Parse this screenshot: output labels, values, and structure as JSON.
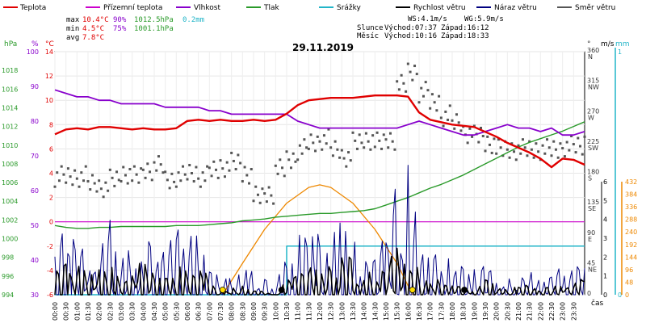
{
  "legend": [
    {
      "name": "Teplota",
      "color": "#e00000"
    },
    {
      "name": "Přízemní teplota",
      "color": "#cc00cc"
    },
    {
      "name": "Vlhkost",
      "color": "#8800cc"
    },
    {
      "name": "Tlak",
      "color": "#2a9a2a"
    },
    {
      "name": "Srážky",
      "color": "#22b5c8"
    },
    {
      "name": "Rychlost větru",
      "color": "#000000"
    },
    {
      "name": "Náraz větru",
      "color": "#000080"
    },
    {
      "name": "Směr větru",
      "color": "#555555"
    }
  ],
  "stats": {
    "max_label": "max",
    "max_temp": "10.4°C",
    "max_hum": "90%",
    "max_press": "1012.5hPa",
    "max_rain": "0.2mm",
    "min_label": "min",
    "min_temp": "4.5°C",
    "min_hum": "75%",
    "min_press": "1001.1hPa",
    "avg_label": "avg",
    "avg_temp": "7.8°C"
  },
  "info": {
    "ws": "WS:4.1m/s",
    "wg": "WG:5.9m/s",
    "sun_label": "Slunce",
    "sunrise": "Východ:07:37",
    "sunset": "Západ:16:12",
    "moon_label": "Měsíc",
    "moonrise": "Východ:10:16",
    "moonset": "Západ:18:33"
  },
  "date": "29.11.2019",
  "axis_units": {
    "hpa": "hPa",
    "pct": "%",
    "degc": "°C",
    "deg": "°",
    "ms": "m/s",
    "mm": "mm",
    "cas": "čas"
  },
  "colors": {
    "temp": "#e00000",
    "hum": "#8800cc",
    "press": "#2a9a2a",
    "rain": "#22b5c8",
    "wind": "#000000",
    "gust": "#000080",
    "dir": "#555555",
    "sun": "#ee8800",
    "ground": "#cc00cc"
  },
  "chart_data": {
    "type": "line",
    "x_axis": {
      "label": "čas",
      "ticks": [
        "00:00",
        "00:30",
        "01:00",
        "01:30",
        "02:00",
        "02:30",
        "03:00",
        "03:30",
        "04:00",
        "04:30",
        "05:00",
        "05:30",
        "06:00",
        "06:30",
        "07:00",
        "07:30",
        "08:00",
        "08:30",
        "09:00",
        "09:30",
        "10:00",
        "10:30",
        "11:00",
        "11:30",
        "12:00",
        "12:30",
        "13:00",
        "13:30",
        "14:00",
        "14:30",
        "15:00",
        "15:30",
        "16:00",
        "16:30",
        "17:00",
        "17:30",
        "18:00",
        "18:30",
        "19:00",
        "19:30",
        "20:00",
        "20:30",
        "21:00",
        "21:30",
        "22:00",
        "22:30",
        "23:00",
        "23:30"
      ]
    },
    "y_axes": {
      "pressure_hpa": {
        "min": 994,
        "max": 1020,
        "ticks": [
          994,
          996,
          998,
          1000,
          1002,
          1004,
          1006,
          1008,
          1010,
          1012,
          1014,
          1016,
          1018
        ]
      },
      "humidity_pct": {
        "min": 30,
        "max": 100,
        "ticks": [
          30,
          40,
          50,
          60,
          70,
          80,
          90,
          100
        ]
      },
      "temperature_c": {
        "min": -6,
        "max": 14,
        "ticks": [
          -6,
          -4,
          -2,
          0,
          2,
          4,
          6,
          8,
          10,
          12,
          14
        ]
      },
      "direction_deg": {
        "min": 0,
        "max": 360,
        "ticks": [
          0,
          45,
          90,
          135,
          180,
          225,
          270,
          315,
          360
        ],
        "compass": [
          "",
          "NE",
          "E",
          "SE",
          "S",
          "SW",
          "W",
          "NW",
          "N"
        ]
      },
      "wind_ms": {
        "min": 0,
        "max": 6,
        "ticks": [
          0,
          1,
          2,
          3,
          4,
          5,
          6
        ]
      },
      "rain_mm": {
        "min": 0,
        "max": 1,
        "ticks": [
          0,
          1
        ]
      },
      "solar": {
        "min": 0,
        "max": 432,
        "ticks": [
          0,
          48,
          96,
          144,
          192,
          240,
          288,
          336,
          384,
          432
        ]
      }
    },
    "temperature": {
      "x": [
        0,
        0.5,
        1,
        1.5,
        2,
        2.5,
        3,
        3.5,
        4,
        4.5,
        5,
        5.5,
        6,
        6.5,
        7,
        7.5,
        8,
        8.5,
        9,
        9.5,
        10,
        10.5,
        11,
        11.5,
        12,
        12.5,
        13,
        13.5,
        14,
        14.5,
        15,
        15.5,
        16,
        16.5,
        17,
        17.5,
        18,
        18.5,
        19,
        19.5,
        20,
        20.5,
        21,
        21.5,
        22,
        22.5,
        23,
        23.5,
        24
      ],
      "y": [
        7.2,
        7.6,
        7.7,
        7.6,
        7.8,
        7.8,
        7.7,
        7.6,
        7.7,
        7.6,
        7.6,
        7.7,
        8.3,
        8.4,
        8.3,
        8.4,
        8.3,
        8.3,
        8.4,
        8.3,
        8.4,
        8.9,
        9.6,
        10.0,
        10.1,
        10.2,
        10.2,
        10.2,
        10.3,
        10.4,
        10.4,
        10.4,
        10.3,
        9.0,
        8.4,
        8.2,
        8.0,
        7.9,
        7.8,
        7.4,
        7.0,
        6.5,
        6.1,
        5.7,
        5.2,
        4.5,
        5.2,
        5.1,
        4.7
      ]
    },
    "humidity": {
      "x": [
        0,
        0.5,
        1,
        1.5,
        2,
        2.5,
        3,
        3.5,
        4,
        4.5,
        5,
        5.5,
        6,
        6.5,
        7,
        7.5,
        8,
        8.5,
        9,
        9.5,
        10,
        10.5,
        11,
        11.5,
        12,
        12.5,
        13,
        13.5,
        14,
        14.5,
        15,
        15.5,
        16,
        16.5,
        17,
        17.5,
        18,
        18.5,
        19,
        19.5,
        20,
        20.5,
        21,
        21.5,
        22,
        22.5,
        23,
        23.5,
        24
      ],
      "y": [
        89,
        88,
        87,
        87,
        86,
        86,
        85,
        85,
        85,
        85,
        84,
        84,
        84,
        84,
        83,
        83,
        82,
        82,
        82,
        82,
        82,
        82,
        80,
        79,
        78,
        78,
        78,
        78,
        78,
        78,
        78,
        78,
        79,
        80,
        79,
        78,
        77,
        76,
        76,
        77,
        78,
        79,
        78,
        78,
        77,
        78,
        76,
        76,
        77
      ]
    },
    "pressure": {
      "x": [
        0,
        0.5,
        1,
        1.5,
        2,
        2.5,
        3,
        3.5,
        4,
        4.5,
        5,
        5.5,
        6,
        6.5,
        7,
        7.5,
        8,
        8.5,
        9,
        9.5,
        10,
        10.5,
        11,
        11.5,
        12,
        12.5,
        13,
        13.5,
        14,
        14.5,
        15,
        15.5,
        16,
        16.5,
        17,
        17.5,
        18,
        18.5,
        19,
        19.5,
        20,
        20.5,
        21,
        21.5,
        22,
        22.5,
        23,
        23.5,
        24
      ],
      "y": [
        1001.4,
        1001.2,
        1001.1,
        1001.1,
        1001.2,
        1001.2,
        1001.3,
        1001.3,
        1001.3,
        1001.3,
        1001.3,
        1001.4,
        1001.4,
        1001.4,
        1001.5,
        1001.6,
        1001.7,
        1001.9,
        1002.0,
        1002.1,
        1002.3,
        1002.4,
        1002.5,
        1002.6,
        1002.7,
        1002.7,
        1002.8,
        1002.9,
        1003.0,
        1003.2,
        1003.6,
        1004.0,
        1004.4,
        1004.9,
        1005.4,
        1005.8,
        1006.3,
        1006.8,
        1007.4,
        1008.0,
        1008.6,
        1009.2,
        1009.8,
        1010.3,
        1010.7,
        1011.1,
        1011.5,
        1012.0,
        1012.5
      ]
    },
    "rain_mm": {
      "x": [
        0,
        10.5,
        10.5,
        24
      ],
      "y": [
        0,
        0,
        0.2,
        0.2
      ]
    },
    "wind_speed_ms": {
      "x": [
        0,
        0.5,
        1,
        1.5,
        2,
        2.5,
        3,
        3.5,
        4,
        4.5,
        5,
        5.5,
        6,
        6.5,
        7,
        7.5,
        8,
        8.5,
        9,
        9.5,
        10,
        10.5,
        11,
        11.5,
        12,
        12.5,
        13,
        13.5,
        14,
        14.5,
        15,
        15.5,
        16,
        16.5,
        17,
        17.5,
        18,
        18.5,
        19,
        19.5,
        20,
        20.5,
        21,
        21.5,
        22,
        22.5,
        23,
        23.5,
        24
      ],
      "y": [
        0.9,
        1.3,
        1.1,
        0.8,
        1.0,
        1.4,
        0.6,
        0.9,
        1.2,
        0.8,
        0.9,
        1.1,
        0.8,
        1.2,
        0.5,
        0.1,
        0.2,
        0.4,
        0.3,
        0.1,
        0.0,
        0.6,
        1.0,
        1.3,
        1.1,
        1.0,
        1.4,
        1.2,
        1.0,
        0.9,
        1.2,
        2.7,
        2.3,
        1.2,
        0.6,
        0.8,
        0.4,
        0.3,
        0.4,
        0.5,
        0.3,
        0.2,
        0.3,
        0.4,
        0.2,
        0.3,
        0.5,
        0.4,
        0.7
      ]
    },
    "wind_gust_ms": {
      "x": [
        0,
        0.5,
        1,
        1.5,
        2,
        2.5,
        3,
        3.5,
        4,
        4.5,
        5,
        5.5,
        6,
        6.5,
        7,
        7.5,
        8,
        8.5,
        9,
        9.5,
        10,
        10.5,
        11,
        11.5,
        12,
        12.5,
        13,
        13.5,
        14,
        14.5,
        15,
        15.5,
        16,
        16.5,
        17,
        17.5,
        18,
        18.5,
        19,
        19.5,
        20,
        20.5,
        21,
        21.5,
        22,
        22.5,
        23,
        23.5,
        24
      ],
      "y": [
        1.5,
        2.3,
        1.8,
        1.6,
        1.9,
        2.4,
        1.3,
        1.8,
        2.0,
        1.5,
        1.6,
        2.2,
        1.7,
        2.8,
        1.5,
        0.6,
        0.7,
        0.9,
        0.8,
        0.5,
        0.2,
        1.5,
        2.0,
        2.3,
        2.1,
        2.0,
        2.6,
        2.2,
        1.9,
        1.7,
        2.1,
        4.8,
        4.2,
        2.3,
        1.4,
        1.6,
        1.0,
        0.9,
        0.8,
        1.0,
        0.7,
        0.5,
        0.6,
        0.8,
        0.6,
        0.7,
        1.0,
        0.9,
        1.4
      ]
    },
    "wind_direction_deg": {
      "x": [
        0,
        0.5,
        1,
        1.5,
        2,
        2.5,
        3,
        3.5,
        4,
        4.5,
        5,
        5.5,
        6,
        6.5,
        7,
        7.5,
        8,
        8.5,
        9,
        9.5,
        10,
        10.5,
        11,
        11.5,
        12,
        12.5,
        13,
        13.5,
        14,
        14.5,
        15,
        15.5,
        16,
        16.5,
        17,
        17.5,
        18,
        18.5,
        19,
        19.5,
        20,
        20.5,
        21,
        21.5,
        22,
        22.5,
        23,
        23.5,
        24
      ],
      "y": [
        175,
        175,
        175,
        165,
        160,
        170,
        180,
        175,
        185,
        190,
        170,
        175,
        180,
        175,
        185,
        190,
        195,
        180,
        145,
        150,
        185,
        200,
        215,
        225,
        230,
        215,
        205,
        225,
        230,
        225,
        230,
        310,
        330,
        300,
        285,
        265,
        255,
        240,
        235,
        225,
        215,
        215,
        215,
        215,
        215,
        215,
        220,
        220,
        225
      ]
    },
    "solar": {
      "x": [
        7.6,
        8.5,
        9.5,
        10.5,
        11.5,
        12,
        12.5,
        13.5,
        14.5,
        15.5,
        16.2
      ],
      "y": [
        0,
        120,
        250,
        350,
        410,
        420,
        410,
        350,
        250,
        120,
        0
      ]
    },
    "markers": [
      {
        "x": 7.6,
        "color": "#ffdd00"
      },
      {
        "x": 10.27,
        "color": "#000000"
      },
      {
        "x": 16.2,
        "color": "#ffdd00"
      },
      {
        "x": 18.55,
        "color": "#000000"
      }
    ]
  }
}
